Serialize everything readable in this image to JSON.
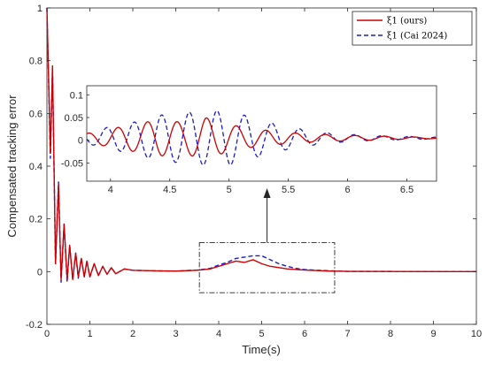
{
  "chart_data": {
    "type": "line",
    "title": "",
    "xlabel": "Time(s)",
    "ylabel": "Compensated tracking error",
    "xlim": [
      0,
      10
    ],
    "ylim": [
      -0.2,
      1
    ],
    "xticks": [
      0,
      1,
      2,
      3,
      4,
      5,
      6,
      7,
      8,
      9,
      10
    ],
    "yticks": [
      -0.2,
      0,
      0.2,
      0.4,
      0.6,
      0.8,
      1
    ],
    "grid": false,
    "legend_position": "top-right",
    "series": [
      {
        "name": "ξ1 (ours)",
        "color": "#cc0000",
        "style": "solid",
        "x": [
          0,
          0.08,
          0.13,
          0.2,
          0.27,
          0.33,
          0.4,
          0.47,
          0.53,
          0.6,
          0.67,
          0.73,
          0.8,
          0.87,
          0.93,
          1.0,
          1.1,
          1.2,
          1.3,
          1.4,
          1.5,
          1.6,
          1.8,
          2.0,
          2.5,
          3.0,
          3.5,
          3.8,
          4.0,
          4.2,
          4.4,
          4.6,
          4.8,
          5.0,
          5.2,
          5.4,
          5.6,
          5.8,
          6.0,
          6.3,
          6.6,
          7.0,
          10.0
        ],
        "y": [
          1.0,
          0.45,
          0.78,
          0.03,
          0.33,
          -0.03,
          0.18,
          -0.03,
          0.1,
          -0.03,
          0.07,
          -0.02,
          0.05,
          -0.02,
          0.04,
          -0.02,
          0.03,
          -0.015,
          0.02,
          -0.01,
          0.015,
          -0.008,
          0.01,
          0.005,
          0.003,
          0.002,
          0.005,
          0.01,
          0.02,
          0.03,
          0.04,
          0.035,
          0.045,
          0.03,
          0.02,
          0.015,
          0.01,
          0.008,
          0.006,
          0.004,
          0.002,
          0.001,
          0.0
        ]
      },
      {
        "name": "ξ1 (Cai 2024)",
        "color": "#1a1acc",
        "style": "dashed",
        "x": [
          0,
          0.08,
          0.13,
          0.2,
          0.27,
          0.33,
          0.4,
          0.47,
          0.53,
          0.6,
          0.67,
          0.73,
          0.8,
          0.87,
          0.93,
          1.0,
          1.1,
          1.2,
          1.3,
          1.4,
          1.5,
          1.6,
          1.8,
          2.0,
          2.5,
          3.0,
          3.5,
          3.8,
          4.0,
          4.2,
          4.4,
          4.6,
          4.8,
          5.0,
          5.2,
          5.4,
          5.6,
          5.8,
          6.0,
          6.3,
          6.6,
          7.0,
          10.0
        ],
        "y": [
          1.0,
          0.43,
          0.77,
          0.03,
          0.34,
          -0.04,
          0.18,
          -0.04,
          0.1,
          -0.03,
          0.07,
          -0.025,
          0.05,
          -0.02,
          0.04,
          -0.02,
          0.03,
          -0.015,
          0.02,
          -0.01,
          0.015,
          -0.008,
          0.01,
          0.005,
          0.003,
          0.002,
          0.006,
          0.012,
          0.025,
          0.035,
          0.05,
          0.055,
          0.06,
          0.06,
          0.045,
          0.03,
          0.02,
          0.012,
          0.008,
          0.005,
          0.003,
          0.001,
          0.0
        ]
      }
    ],
    "inset": {
      "xlim": [
        3.8,
        6.75
      ],
      "ylim": [
        -0.09,
        0.12
      ],
      "xticks": [
        4,
        4.5,
        5,
        5.5,
        6,
        6.5
      ],
      "yticks": [
        -0.05,
        0,
        0.05,
        0.1
      ],
      "source_region": {
        "x": [
          3.55,
          6.7
        ],
        "y": [
          -0.08,
          0.11
        ]
      }
    }
  }
}
